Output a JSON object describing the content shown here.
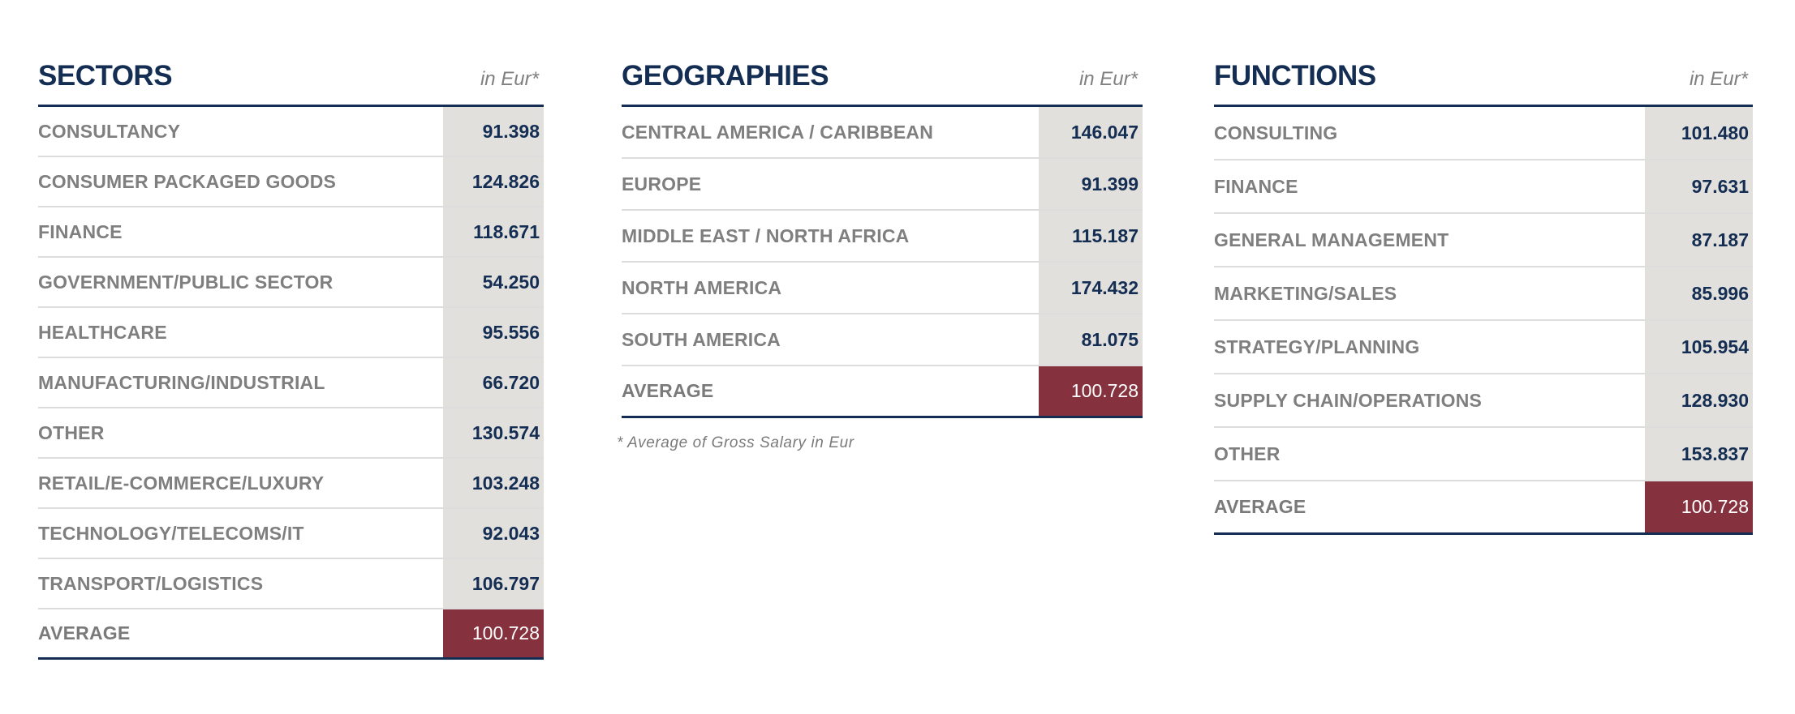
{
  "sectors": {
    "title": "SECTORS",
    "unit": "in Eur*",
    "rows": [
      {
        "label": "CONSULTANCY",
        "value": "91.398"
      },
      {
        "label": "CONSUMER PACKAGED GOODS",
        "value": "124.826"
      },
      {
        "label": "FINANCE",
        "value": "118.671"
      },
      {
        "label": "GOVERNMENT/PUBLIC SECTOR",
        "value": "54.250"
      },
      {
        "label": "HEALTHCARE",
        "value": "95.556"
      },
      {
        "label": "MANUFACTURING/INDUSTRIAL",
        "value": "66.720"
      },
      {
        "label": "OTHER",
        "value": "130.574"
      },
      {
        "label": "RETAIL/E-COMMERCE/LUXURY",
        "value": "103.248"
      },
      {
        "label": "TECHNOLOGY/TELECOMS/IT",
        "value": "92.043"
      },
      {
        "label": "TRANSPORT/LOGISTICS",
        "value": "106.797"
      }
    ],
    "average": {
      "label": "AVERAGE",
      "value": "100.728"
    }
  },
  "geographies": {
    "title": "GEOGRAPHIES",
    "unit": "in Eur*",
    "rows": [
      {
        "label": "CENTRAL AMERICA / CARIBBEAN",
        "value": "146.047"
      },
      {
        "label": "EUROPE",
        "value": "91.399"
      },
      {
        "label": "MIDDLE EAST / NORTH AFRICA",
        "value": "115.187"
      },
      {
        "label": "NORTH AMERICA",
        "value": "174.432"
      },
      {
        "label": "SOUTH AMERICA",
        "value": "81.075"
      }
    ],
    "average": {
      "label": "AVERAGE",
      "value": "100.728"
    },
    "footnote": "* Average of Gross Salary in Eur"
  },
  "functions": {
    "title": "FUNCTIONS",
    "unit": "in Eur*",
    "rows": [
      {
        "label": "CONSULTING",
        "value": "101.480"
      },
      {
        "label": "FINANCE",
        "value": "97.631"
      },
      {
        "label": "GENERAL MANAGEMENT",
        "value": "87.187"
      },
      {
        "label": "MARKETING/SALES",
        "value": "85.996"
      },
      {
        "label": "STRATEGY/PLANNING",
        "value": "105.954"
      },
      {
        "label": "SUPPLY CHAIN/OPERATIONS",
        "value": "128.930"
      },
      {
        "label": "OTHER",
        "value": "153.837"
      }
    ],
    "average": {
      "label": "AVERAGE",
      "value": "100.728"
    }
  },
  "colors": {
    "title_navy": "#142d52",
    "label_gray": "#7f7f7f",
    "value_cell_bg": "#e2e0dd",
    "average_cell_bg": "#85323e"
  }
}
